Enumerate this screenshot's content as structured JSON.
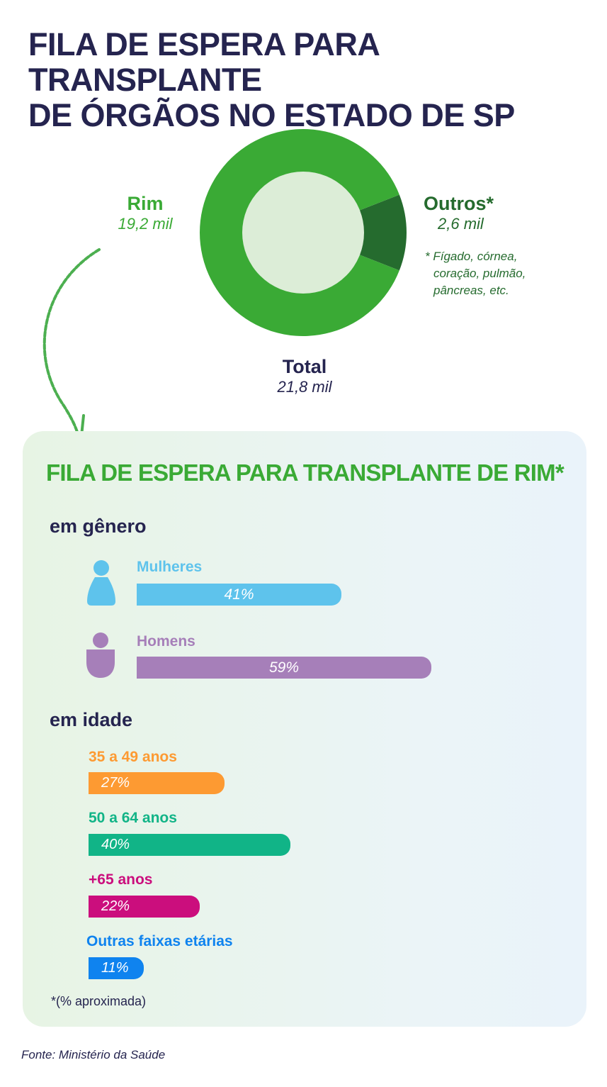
{
  "title_line1": "FILA DE ESPERA PARA TRANSPLANTE",
  "title_line2": "DE ÓRGÃOS NO ESTADO DE SP",
  "chart_data": [
    {
      "type": "pie",
      "slices": [
        {
          "label": "Rim",
          "value": 19.2,
          "value_text": "19,2 mil",
          "color": "#3aaa35"
        },
        {
          "label": "Outros*",
          "value": 2.6,
          "value_text": "2,6 mil",
          "color": "#256b2e"
        }
      ],
      "total_label": "Total",
      "total_text": "21,8 mil",
      "inner_color": "#dcedd7",
      "note_line1": "* Fígado, córnea,",
      "note_line2": "coração, pulmão,",
      "note_line3": "pâncreas, etc."
    },
    {
      "type": "bar",
      "title": "FILA DE ESPERA PARA TRANSPLANTE DE RIM*",
      "sections": [
        {
          "heading": "em gênero",
          "categories": [
            "Mulheres",
            "Homens"
          ],
          "values": [
            41,
            59
          ],
          "value_texts": [
            "41%",
            "59%"
          ],
          "colors": [
            "#5ec3ec",
            "#a67fb9"
          ]
        },
        {
          "heading": "em idade",
          "categories": [
            "35 a 49 anos",
            "50 a 64 anos",
            "+65 anos",
            "Outras faixas etárias"
          ],
          "values": [
            27,
            40,
            22,
            11
          ],
          "value_texts": [
            "27%",
            "40%",
            "22%",
            "11%"
          ],
          "colors": [
            "#fd9a32",
            "#11b487",
            "#cb0e7d",
            "#0f83ef"
          ]
        }
      ],
      "footnote": "*(% aproximada)"
    }
  ],
  "source": "Fonte: Ministério da Saúde"
}
